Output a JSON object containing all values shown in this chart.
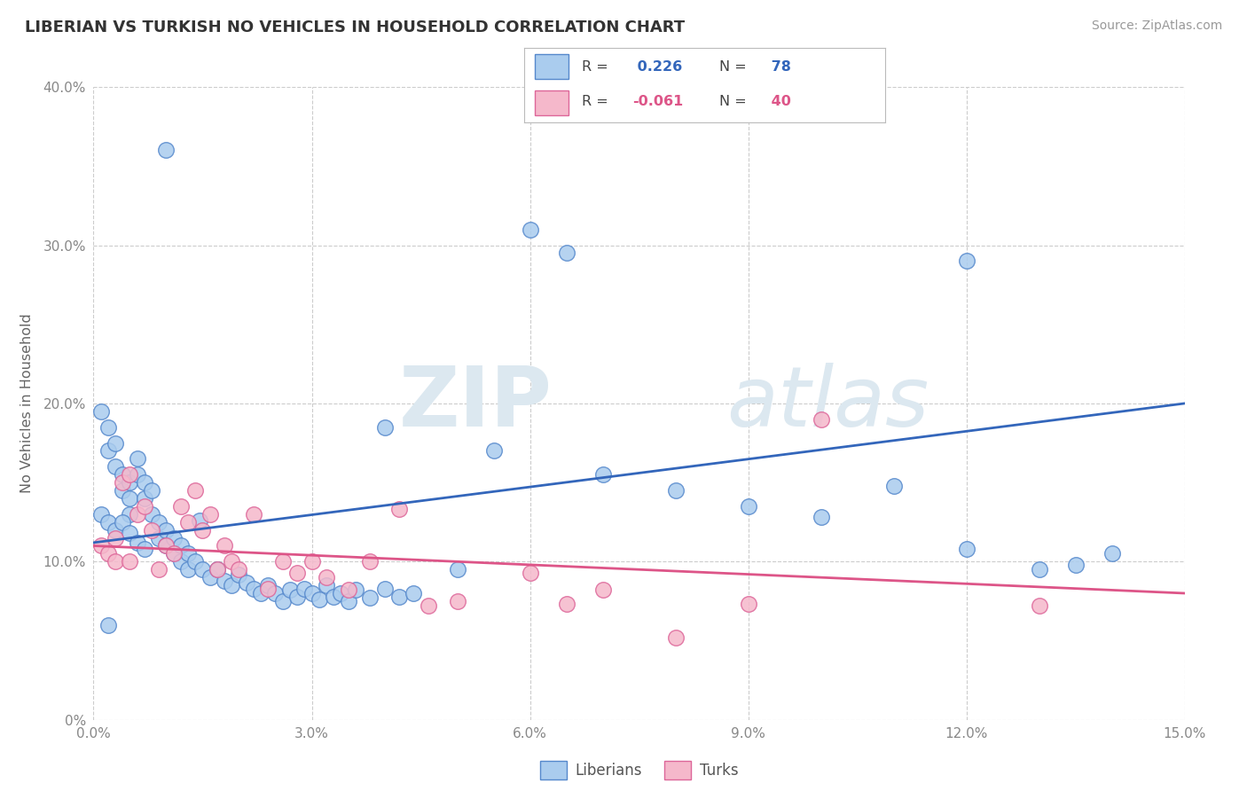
{
  "title": "LIBERIAN VS TURKISH NO VEHICLES IN HOUSEHOLD CORRELATION CHART",
  "source_text": "Source: ZipAtlas.com",
  "ylabel": "No Vehicles in Household",
  "xlim": [
    0.0,
    0.15
  ],
  "ylim": [
    0.0,
    0.4
  ],
  "xtick_vals": [
    0.0,
    0.03,
    0.06,
    0.09,
    0.12,
    0.15
  ],
  "xticklabels": [
    "0.0%",
    "3.0%",
    "6.0%",
    "9.0%",
    "12.0%",
    "15.0%"
  ],
  "ytick_vals": [
    0.0,
    0.1,
    0.2,
    0.3,
    0.4
  ],
  "yticklabels": [
    "0%",
    "10.0%",
    "20.0%",
    "30.0%",
    "40.0%"
  ],
  "grid_color": "#cccccc",
  "bg_color": "#ffffff",
  "watermark_zip": "ZIP",
  "watermark_atlas": "atlas",
  "liberian_face_color": "#aaccee",
  "liberian_edge_color": "#5588cc",
  "turkish_face_color": "#f5b8cb",
  "turkish_edge_color": "#dd6699",
  "liberian_line_color": "#3366bb",
  "turkish_line_color": "#dd5588",
  "R_liberian": 0.226,
  "N_liberian": 78,
  "R_turkish": -0.061,
  "N_turkish": 40,
  "legend_label_1": "Liberians",
  "legend_label_2": "Turks",
  "title_color": "#333333",
  "source_color": "#999999",
  "tick_color": "#888888",
  "ylabel_color": "#666666",
  "lib_line_y0": 0.112,
  "lib_line_y1": 0.2,
  "turk_line_y0": 0.11,
  "turk_line_y1": 0.08
}
